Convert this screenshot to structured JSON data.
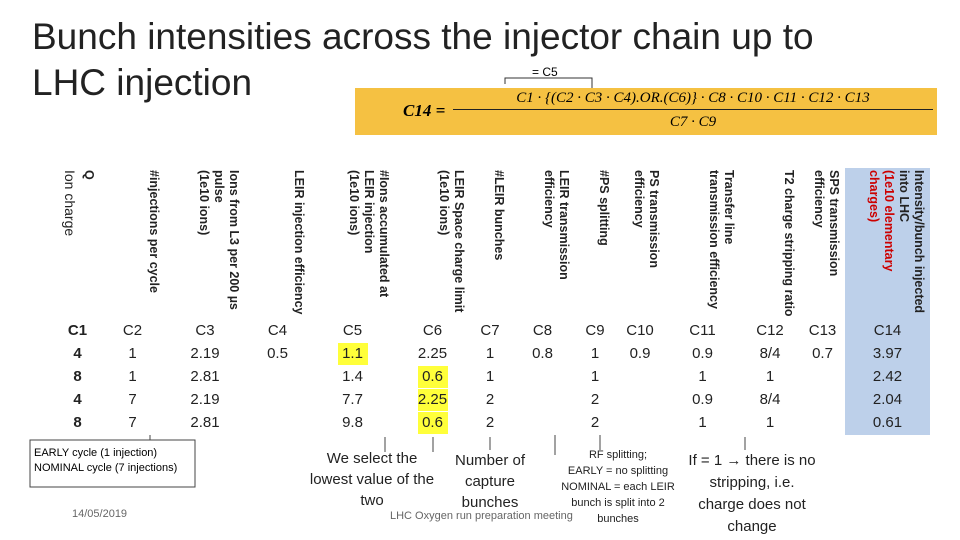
{
  "title": "Bunch intensities across the injector chain up to LHC injection",
  "formula": {
    "lhs": "C14 =",
    "numerator": "C1 · {(C2 · C3 · C4).OR.(C6)} · C8 · C10 · C11 · C12 · C13",
    "denominator": "C7 · C9",
    "brace_note": "= C5"
  },
  "table": {
    "headers": [
      [
        "Q",
        "Ion charge"
      ],
      [
        "#injections per cycle"
      ],
      [
        "Ions from L3 per 200 µs pulse",
        "(1e10 ions)"
      ],
      [
        "LEIR injection efficiency"
      ],
      [
        "#Ions accumulated at LEIR injection",
        "(1e10 ions)"
      ],
      [
        "LEIR Space charge limit",
        "(1e10 ions)"
      ],
      [
        "#LEIR bunches"
      ],
      [
        "LEIR transmission efficiency"
      ],
      [
        "#PS splitting"
      ],
      [
        "PS transmission efficiency"
      ],
      [
        "Transfer line transmission efficiency"
      ],
      [
        "T2 charge stripping ratio"
      ],
      [
        "SPS transmission efficiency"
      ],
      [
        "Intensity/bunch injected into LHC",
        "(1e10 elementary charges)"
      ]
    ],
    "column_ids": [
      "C1",
      "C2",
      "C3",
      "C4",
      "C5",
      "C6",
      "C7",
      "C8",
      "C9",
      "C10",
      "C11",
      "C12",
      "C13",
      "C14"
    ],
    "rows": [
      [
        "4",
        "1",
        "2.19",
        "0.5",
        "1.1",
        "2.25",
        "1",
        "0.8",
        "1",
        "0.9",
        "0.9",
        "8/4",
        "0.7",
        "3.97"
      ],
      [
        "8",
        "1",
        "2.81",
        null,
        "1.4",
        "0.6",
        "1",
        null,
        "1",
        null,
        "1",
        "1",
        null,
        "2.42"
      ],
      [
        "4",
        "7",
        "2.19",
        null,
        "7.7",
        "2.25",
        "2",
        null,
        "2",
        null,
        "0.9",
        "8/4",
        null,
        "2.04"
      ],
      [
        "8",
        "7",
        "2.81",
        null,
        "9.8",
        "0.6",
        "2",
        null,
        "2",
        null,
        "1",
        "1",
        null,
        "0.61"
      ]
    ]
  },
  "annotations": {
    "cycles": [
      "EARLY cycle (1 injection)",
      "NOMINAL cycle (7 injections)"
    ],
    "select": "We select the lowest value of the two",
    "capture": "Number of capture bunches",
    "rf": [
      "RF splitting;",
      "EARLY = no splitting",
      "NOMINAL = each LEIR bunch is split into 2 bunches"
    ],
    "stripping": "If = 1 → there is no stripping, i.e. charge does not change"
  },
  "footer": {
    "date": "14/05/2019",
    "meeting": "LHC Oxygen run preparation meeting"
  }
}
